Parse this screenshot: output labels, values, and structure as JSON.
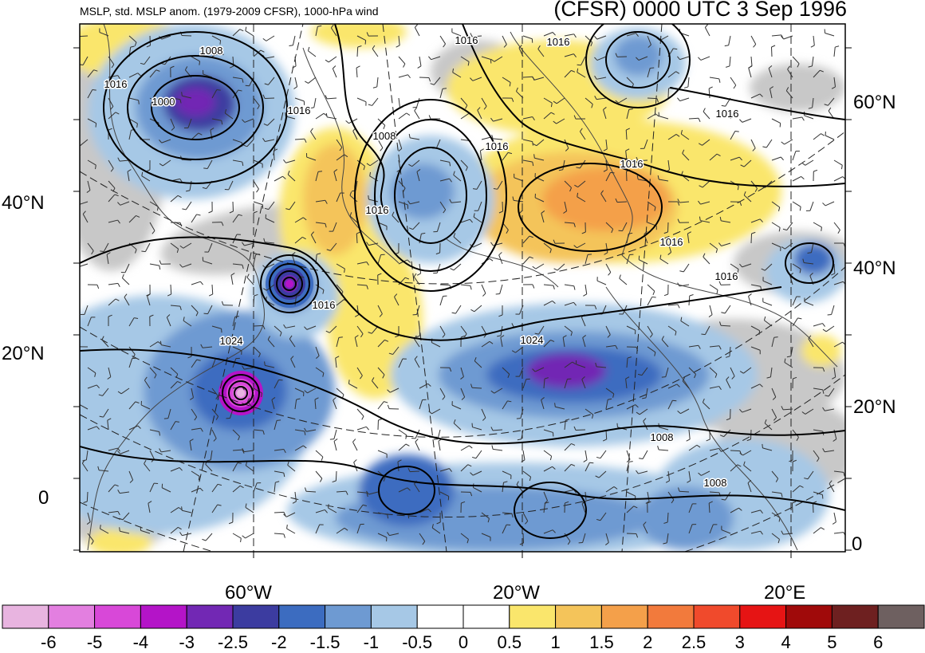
{
  "header": {
    "left_title": "MSLP, std. MSLP anom. (1979-2009 CFSR), 1000-hPa wind",
    "right_title": "(CFSR) 0000 UTC 3 Sep 1996"
  },
  "axes": {
    "left_lat_labels": [
      "40°N",
      "20°N",
      "0"
    ],
    "right_lat_labels": [
      "60°N",
      "40°N",
      "20°N",
      "0"
    ],
    "bottom_lon_labels": [
      "60°W",
      "20°W",
      "20°E"
    ]
  },
  "isobar_labels": [
    "1008",
    "1016",
    "1000",
    "1016",
    "1016",
    "1016",
    "1008",
    "1016",
    "1016",
    "1016",
    "1024",
    "1024",
    "1016",
    "1016",
    "1016",
    "1016",
    "1008",
    "1008"
  ],
  "colorbar": {
    "tick_labels": [
      "-6",
      "-5",
      "-4",
      "-3",
      "-2.5",
      "-2",
      "-1.5",
      "-1",
      "-0.5",
      "0",
      "0.5",
      "1",
      "1.5",
      "2",
      "2.5",
      "3",
      "4",
      "5",
      "6"
    ],
    "colors": [
      "#e8b4e0",
      "#e37fe0",
      "#d848d8",
      "#b414c8",
      "#7228b4",
      "#3c3ca0",
      "#3c6cc0",
      "#6e9ad2",
      "#a6c8e6",
      "#ffffff",
      "#ffffff",
      "#fae66c",
      "#f4c45a",
      "#f4a04a",
      "#f27a3c",
      "#f04a2c",
      "#e61414",
      "#a00a0a",
      "#6e2020",
      "#6e6060"
    ]
  },
  "palette": {
    "land_gray": "#c8c8c8",
    "contour": "#000000",
    "coast": "#444444"
  }
}
